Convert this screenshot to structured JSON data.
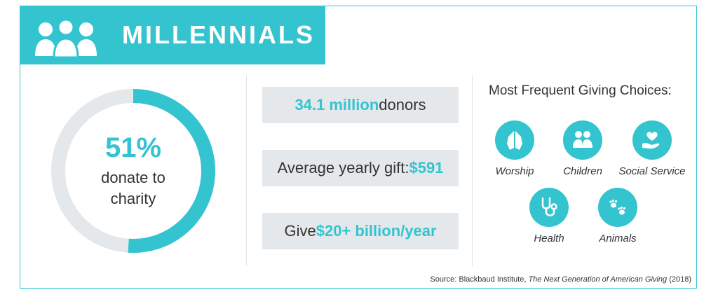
{
  "header": {
    "title": "MILLENNIALS",
    "icon": "people-group-icon"
  },
  "donut": {
    "percent_text": "51%",
    "percent_value": 51,
    "label": "donate to charity",
    "fill_color": "#33c4d0",
    "track_color": "#e4e8eb"
  },
  "stats": [
    {
      "highlight": "34.1 million",
      "after": " donors",
      "before": ""
    },
    {
      "before": "Average yearly gift: ",
      "highlight": "$591",
      "after": ""
    },
    {
      "before": "Give ",
      "highlight": "$20+ billion/year",
      "after": ""
    }
  ],
  "choices": {
    "title": "Most Frequent Giving Choices:",
    "items": [
      {
        "label": "Worship",
        "icon": "praying-hands-icon"
      },
      {
        "label": "Children",
        "icon": "children-icon"
      },
      {
        "label": "Social Service",
        "icon": "heart-in-hand-icon"
      },
      {
        "label": "Health",
        "icon": "stethoscope-icon"
      },
      {
        "label": "Animals",
        "icon": "paw-prints-icon"
      }
    ]
  },
  "source": {
    "prefix": "Source: Blackbaud Institute, ",
    "title": "The Next Generation of American Giving",
    "suffix": " (2018)"
  },
  "colors": {
    "accent": "#33c4d0",
    "panel": "#e4e8eb",
    "text": "#333333"
  }
}
